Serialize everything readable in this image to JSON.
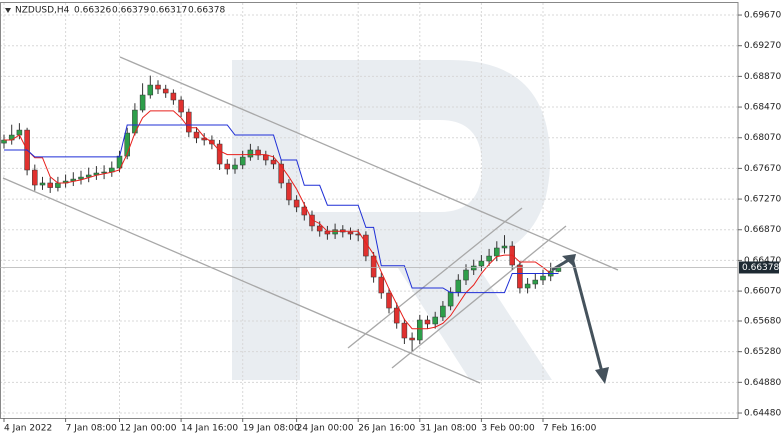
{
  "chart_data": {
    "type": "candlestick",
    "title": "NZDUSD,H4",
    "categories": [
      "4 Jan 2022",
      null,
      null,
      null,
      null,
      null,
      null,
      null,
      "7 Jan 08:00",
      null,
      null,
      null,
      null,
      null,
      null,
      "12 Jan 00:00",
      null,
      null,
      null,
      null,
      null,
      null,
      null,
      "14 Jan 16:00",
      null,
      null,
      null,
      null,
      null,
      null,
      null,
      "19 Jan 08:00",
      null,
      null,
      null,
      null,
      null,
      null,
      "24 Jan 00:00",
      null,
      null,
      null,
      null,
      null,
      null,
      null,
      "26 Jan 16:00",
      null,
      null,
      null,
      null,
      null,
      null,
      null,
      "31 Jan 08:00",
      null,
      null,
      null,
      null,
      null,
      null,
      null,
      "3 Feb 00:00",
      null,
      null,
      null,
      null,
      null,
      null,
      null,
      "7 Feb 16:00",
      null,
      null,
      null
    ],
    "open": [
      0.68,
      0.6804,
      0.68105,
      0.6817,
      0.67649,
      0.67453,
      0.6748,
      0.6742,
      0.67479,
      0.67505,
      0.67531,
      0.67557,
      0.67584,
      0.6761,
      0.67623,
      0.67675,
      0.67831,
      0.68131,
      0.68431,
      0.68627,
      0.68757,
      0.68705,
      0.68653,
      0.68562,
      0.68405,
      0.68144,
      0.68066,
      0.6804,
      0.67988,
      0.67727,
      0.67662,
      0.67714,
      0.67818,
      0.6791,
      0.67844,
      0.67779,
      0.67727,
      0.67479,
      0.67258,
      0.67166,
      0.67062,
      0.66919,
      0.66853,
      0.66814,
      0.6687,
      0.6684,
      0.66814,
      0.66801,
      0.66527,
      0.66253,
      0.66045,
      0.65849,
      0.65653,
      0.65458,
      0.65432,
      0.65693,
      0.65641,
      0.65732,
      0.65875,
      0.66058,
      0.66214,
      0.66345,
      0.66397,
      0.66462,
      0.66527,
      0.66632,
      0.66658,
      0.6641,
      0.6611,
      0.66162,
      0.66214,
      0.66266,
      0.66326,
      null
    ],
    "high": [
      0.6811,
      0.6824,
      0.6826,
      0.682,
      0.6772,
      0.6756,
      0.6755,
      0.6756,
      0.6759,
      0.6762,
      0.6764,
      0.6768,
      0.677,
      0.6771,
      0.6776,
      0.679,
      0.682,
      0.6852,
      0.6878,
      0.6888,
      0.6882,
      0.6876,
      0.687,
      0.6861,
      0.6845,
      0.6821,
      0.6813,
      0.681,
      0.6804,
      0.6779,
      0.678,
      0.679,
      0.6799,
      0.6796,
      0.679,
      0.6784,
      0.6778,
      0.6753,
      0.6732,
      0.6723,
      0.6712,
      0.6698,
      0.6692,
      0.6695,
      0.6693,
      0.669,
      0.6688,
      0.6685,
      0.6658,
      0.6631,
      0.6611,
      0.6592,
      0.6571,
      0.6553,
      0.6576,
      0.6575,
      0.658,
      0.6594,
      0.6612,
      0.6629,
      0.6642,
      0.6648,
      0.6654,
      0.6662,
      0.6672,
      0.668,
      0.6672,
      0.6646,
      0.6624,
      0.663,
      0.6635,
      0.6644,
      0.66379,
      null
    ],
    "low": [
      0.6793,
      0.6798,
      0.6805,
      0.6758,
      0.6738,
      0.6739,
      0.6735,
      0.6737,
      0.6742,
      0.6744,
      0.6746,
      0.6749,
      0.6752,
      0.6753,
      0.6756,
      0.6762,
      0.6779,
      0.681,
      0.684,
      0.6858,
      0.6864,
      0.6859,
      0.685,
      0.6834,
      0.6808,
      0.68,
      0.6797,
      0.6792,
      0.6765,
      0.6759,
      0.676,
      0.6766,
      0.6777,
      0.6778,
      0.6771,
      0.6766,
      0.6741,
      0.6719,
      0.671,
      0.6699,
      0.6685,
      0.6678,
      0.6674,
      0.6675,
      0.6677,
      0.6674,
      0.6672,
      0.6646,
      0.6618,
      0.6597,
      0.6578,
      0.6558,
      0.6538,
      0.6529,
      0.6538,
      0.6558,
      0.6558,
      0.6568,
      0.6582,
      0.66,
      0.6615,
      0.6628,
      0.6633,
      0.664,
      0.6646,
      0.6656,
      0.6635,
      0.6604,
      0.6604,
      0.661,
      0.6615,
      0.662,
      0.66317,
      null
    ],
    "close": [
      0.6804,
      0.68105,
      0.6817,
      0.67649,
      0.67453,
      0.6748,
      0.6742,
      0.67479,
      0.67505,
      0.67531,
      0.67557,
      0.67584,
      0.6761,
      0.67623,
      0.67675,
      0.67831,
      0.68131,
      0.68431,
      0.68627,
      0.68757,
      0.68705,
      0.68653,
      0.68562,
      0.68405,
      0.68144,
      0.68066,
      0.6804,
      0.67988,
      0.67727,
      0.67662,
      0.67714,
      0.67818,
      0.6791,
      0.67844,
      0.67779,
      0.67727,
      0.67479,
      0.67258,
      0.67166,
      0.67062,
      0.66919,
      0.66853,
      0.66814,
      0.6687,
      0.6684,
      0.66814,
      0.66801,
      0.66527,
      0.66253,
      0.66045,
      0.65849,
      0.65653,
      0.65458,
      0.65432,
      0.65693,
      0.65641,
      0.65732,
      0.65875,
      0.66058,
      0.66214,
      0.66345,
      0.66397,
      0.66462,
      0.66527,
      0.66632,
      0.66658,
      0.6641,
      0.6611,
      0.66162,
      0.66214,
      0.66266,
      0.66332,
      0.66378,
      null
    ],
    "up_color": "#2e9e4a",
    "down_color": "#e0312f",
    "series": [
      {
        "color": "#e8201c",
        "values": [
          0.6804,
          0.6804,
          0.68105,
          0.6791,
          0.6781,
          0.6781,
          0.6756,
          0.6748,
          0.6748,
          0.675,
          0.6752,
          0.6755,
          0.6758,
          0.676,
          0.6762,
          0.6765,
          0.6786,
          0.6813,
          0.6833,
          0.6842,
          0.6842,
          0.6842,
          0.6842,
          0.6833,
          0.682,
          0.682,
          0.6808,
          0.6801,
          0.679,
          0.6785,
          0.6785,
          0.6785,
          0.6785,
          0.6785,
          0.6785,
          0.6782,
          0.677,
          0.6756,
          0.674,
          0.672,
          0.67,
          0.6695,
          0.6685,
          0.6685,
          0.6685,
          0.6685,
          0.6685,
          0.667,
          0.6655,
          0.6632,
          0.661,
          0.659,
          0.657,
          0.6558,
          0.6558,
          0.6558,
          0.656,
          0.6565,
          0.6575,
          0.659,
          0.6605,
          0.6615,
          0.663,
          0.6642,
          0.6652,
          0.6654,
          0.6654,
          0.6645,
          0.6645,
          0.6645,
          0.6638,
          0.663,
          0.663,
          null
        ]
      },
      {
        "color": "#1f2fd6",
        "values": [
          0.6791,
          0.6791,
          0.6791,
          0.6791,
          0.6782,
          0.6782,
          0.6782,
          0.6782,
          0.6782,
          0.6782,
          0.6782,
          0.6782,
          0.6782,
          0.6782,
          0.6782,
          0.6782,
          0.68236,
          0.68236,
          0.68236,
          0.68236,
          0.68236,
          0.68236,
          0.68236,
          0.68236,
          0.68236,
          0.68236,
          0.68236,
          0.68236,
          0.68236,
          0.68236,
          0.68105,
          0.68105,
          0.68105,
          0.68105,
          0.68105,
          0.68105,
          0.6778,
          0.6778,
          0.6778,
          0.6745,
          0.6745,
          0.6745,
          0.6719,
          0.6719,
          0.6719,
          0.6719,
          0.6719,
          0.669,
          0.669,
          0.664,
          0.664,
          0.664,
          0.664,
          0.6611,
          0.6611,
          0.6611,
          0.6611,
          0.6611,
          0.6605,
          0.6605,
          0.6605,
          0.6605,
          0.6605,
          0.6605,
          0.6605,
          0.6605,
          0.663,
          0.663,
          0.663,
          0.663,
          0.663,
          0.663,
          0.663,
          null
        ]
      }
    ],
    "ylim": [
      0.64415,
      0.69827
    ],
    "yticks": [
      {
        "value": 0.6967,
        "label": "0.69670"
      },
      {
        "value": 0.6927,
        "label": "0.69270"
      },
      {
        "value": 0.6887,
        "label": "0.68870"
      },
      {
        "value": 0.6847,
        "label": "0.68470"
      },
      {
        "value": 0.6807,
        "label": "0.68070"
      },
      {
        "value": 0.6767,
        "label": "0.67670"
      },
      {
        "value": 0.6727,
        "label": "0.67270"
      },
      {
        "value": 0.6687,
        "label": "0.66870"
      },
      {
        "value": 0.6647,
        "label": "0.66470"
      },
      {
        "value": 0.6607,
        "label": "0.66070"
      },
      {
        "value": 0.6568,
        "label": "0.65680"
      },
      {
        "value": 0.6528,
        "label": "0.65280"
      },
      {
        "value": 0.6488,
        "label": "0.64880"
      },
      {
        "value": 0.6448,
        "label": "0.64480"
      }
    ],
    "grid": true
  }
}
